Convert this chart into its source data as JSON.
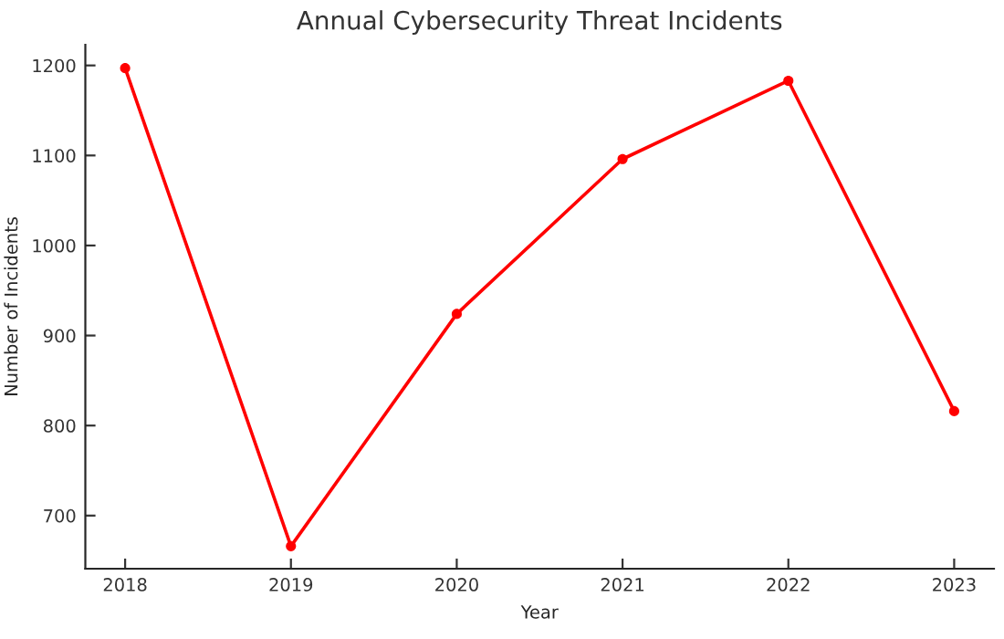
{
  "chart_data": {
    "type": "line",
    "title": "Annual Cybersecurity Threat Incidents",
    "xlabel": "Year",
    "ylabel": "Number of Incidents",
    "x": [
      2018,
      2019,
      2020,
      2021,
      2022,
      2023
    ],
    "series": [
      {
        "color": "#ff0000",
        "values": [
          1197,
          666,
          924,
          1096,
          1183,
          816
        ]
      }
    ],
    "xlim": [
      2017.76,
      2023.24
    ],
    "xticks": [
      2018,
      2019,
      2020,
      2021,
      2022,
      2023
    ],
    "ylim": [
      641,
      1223
    ],
    "yticks": [
      700,
      800,
      900,
      1000,
      1100,
      1200
    ],
    "marker": "circle",
    "line_style": "solid",
    "grid": false
  }
}
